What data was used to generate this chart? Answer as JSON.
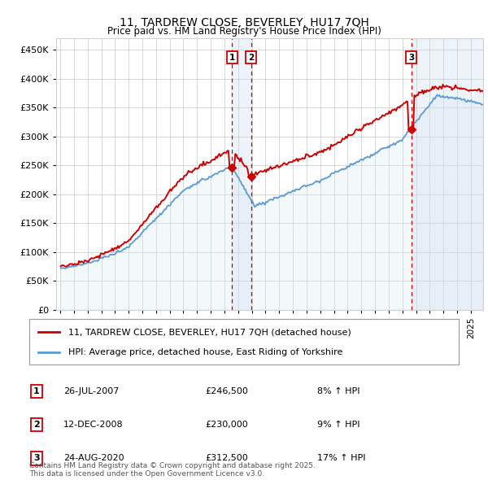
{
  "title": "11, TARDREW CLOSE, BEVERLEY, HU17 7QH",
  "subtitle": "Price paid vs. HM Land Registry's House Price Index (HPI)",
  "legend_line1": "11, TARDREW CLOSE, BEVERLEY, HU17 7QH (detached house)",
  "legend_line2": "HPI: Average price, detached house, East Riding of Yorkshire",
  "sale1_date": "26-JUL-2007",
  "sale1_price": 246500,
  "sale1_year": 2007.54,
  "sale1_hpi": "8% ↑ HPI",
  "sale2_date": "12-DEC-2008",
  "sale2_price": 230000,
  "sale2_year": 2008.96,
  "sale2_hpi": "9% ↑ HPI",
  "sale3_date": "24-AUG-2020",
  "sale3_price": 312500,
  "sale3_year": 2020.65,
  "sale3_hpi": "17% ↑ HPI",
  "footer": "Contains HM Land Registry data © Crown copyright and database right 2025.\nThis data is licensed under the Open Government Licence v3.0.",
  "red_color": "#cc0000",
  "blue_color": "#5b9bd5",
  "blue_fill": "#dae8f5",
  "vline_color": "#cc0000",
  "grid_color": "#d0d0d0",
  "background_color": "#ffffff",
  "ylim": [
    0,
    470000
  ],
  "xlim_start": 1994.7,
  "xlim_end": 2025.9,
  "yticks": [
    0,
    50000,
    100000,
    150000,
    200000,
    250000,
    300000,
    350000,
    400000,
    450000
  ]
}
